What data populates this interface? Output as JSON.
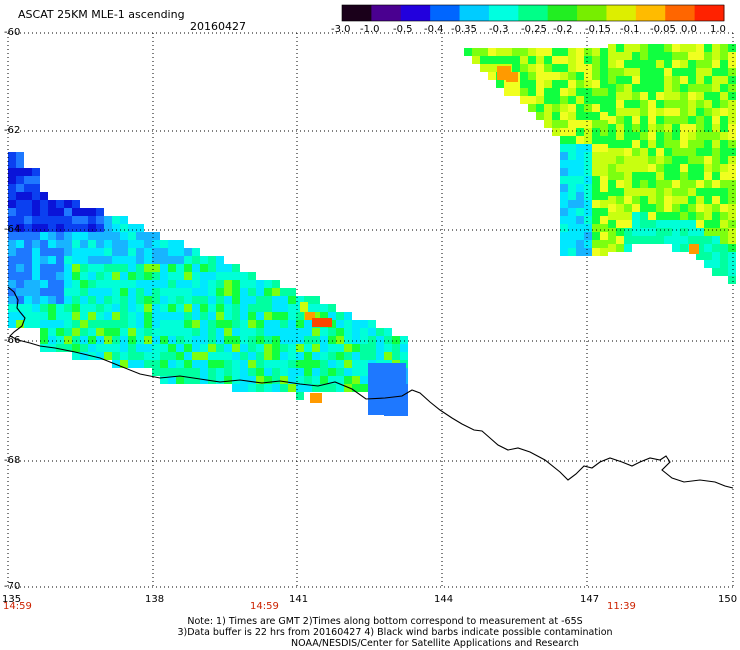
{
  "header": {
    "title": "ASCAT 25KM MLE-1 ascending",
    "date": "20160427"
  },
  "colorbar": {
    "labels": [
      "-3.0",
      "-1.0",
      "-0.5",
      "-0.4",
      "-0.35",
      "-0.3",
      "-0.25",
      "-0.2",
      "-0.15",
      "-0.1",
      "-0.05",
      "0.0",
      "1.0"
    ],
    "colors": [
      "#1a001a",
      "#4a0090",
      "#2200dd",
      "#0066ff",
      "#00ccff",
      "#00ffe0",
      "#00ff88",
      "#22ee22",
      "#77ee00",
      "#ddee00",
      "#ffbb00",
      "#ff6600",
      "#ff2200"
    ]
  },
  "map": {
    "lat_labels": [
      "-60",
      "-62",
      "-64",
      "-66",
      "-68",
      "-70"
    ],
    "lon_labels": [
      "135",
      "138",
      "141",
      "144",
      "147",
      "150"
    ],
    "pass_times": [
      "14:59",
      "14:59",
      "11:39"
    ],
    "gridline_color": "#000000"
  },
  "notes": {
    "line1": "Note: 1) Times are GMT 2)Times along bottom correspond to measurement at -65S",
    "line2": "3)Data buffer is 22 hrs from 20160427 4) Black wind barbs indicate possible contamination",
    "line3": "NOAA/NESDIS/Center for Satellite Applications and Research"
  }
}
